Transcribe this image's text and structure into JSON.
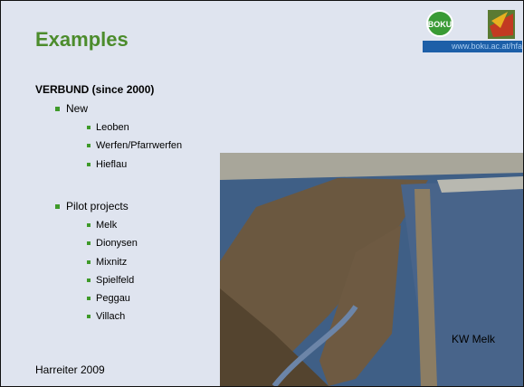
{
  "header": {
    "title": "Examples",
    "logo_text": "BOKU",
    "url": "www.boku.ac.at/hfa"
  },
  "content": {
    "heading": "VERBUND (since 2000)",
    "groups": [
      {
        "label": "New",
        "items": [
          "Leoben",
          "Werfen/Pfarrwerfen",
          "Hieflau"
        ]
      },
      {
        "label": "Pilot projects",
        "items": [
          "Melk",
          "Dionysen",
          "Mixnitz",
          "Spielfeld",
          "Peggau",
          "Villach"
        ]
      }
    ]
  },
  "photo": {
    "caption": "KW Melk"
  },
  "footer": {
    "source": "Harreiter 2009"
  }
}
